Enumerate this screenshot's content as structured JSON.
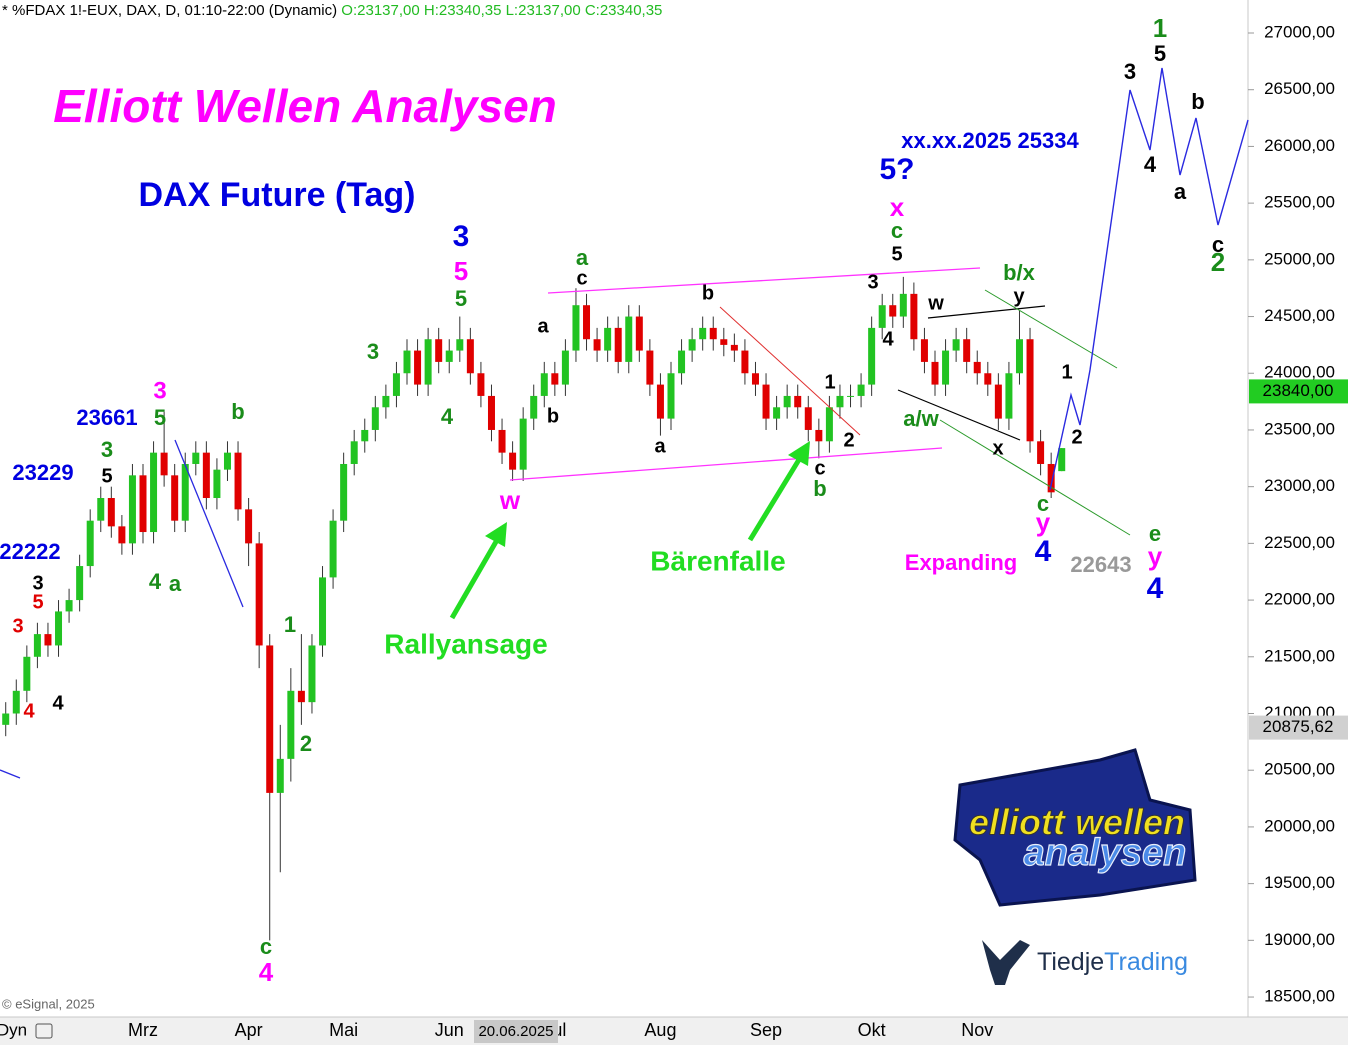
{
  "header": {
    "symbol": "* %FDAX 1!-EUX, DAX, D, 01:10-22:00 (Dynamic)",
    "ohlc": "O:23137,00 H:23340,35 L:23137,00 C:23340,35"
  },
  "title": "Elliott Wellen Analysen",
  "subtitle": "DAX Future (Tag)",
  "copyright": "© eSignal, 2025",
  "footer_mode": "Dyn",
  "cursor_date": "20.06.2025",
  "logo": {
    "line1": "elliott wellen",
    "line2": "analysen",
    "brand1": "Tiedje",
    "brand2": "Trading"
  },
  "chart_data": {
    "type": "candlestick",
    "up_color": "#22c322",
    "down_color": "#e00000",
    "ylim": [
      18324,
      27291
    ],
    "yticks": [
      {
        "value": 18500,
        "label": "18500,00"
      },
      {
        "value": 19000,
        "label": "19000,00"
      },
      {
        "value": 19500,
        "label": "19500,00"
      },
      {
        "value": 20000,
        "label": "20000,00"
      },
      {
        "value": 20500,
        "label": "20500,00"
      },
      {
        "value": 21000,
        "label": "21000,00"
      },
      {
        "value": 21500,
        "label": "21500,00"
      },
      {
        "value": 22000,
        "label": "22000,00"
      },
      {
        "value": 22500,
        "label": "22500,00"
      },
      {
        "value": 23000,
        "label": "23000,00"
      },
      {
        "value": 23500,
        "label": "23500,00"
      },
      {
        "value": 24000,
        "label": "24000,00"
      },
      {
        "value": 24500,
        "label": "24500,00"
      },
      {
        "value": 25000,
        "label": "25000,00"
      },
      {
        "value": 25500,
        "label": "25500,00"
      },
      {
        "value": 26000,
        "label": "26000,00"
      },
      {
        "value": 26500,
        "label": "26500,00"
      },
      {
        "value": 27000,
        "label": "27000,00"
      }
    ],
    "price_markers": [
      {
        "value": 23840,
        "label": "23840,00",
        "color": "#22cc22"
      },
      {
        "value": 20875.62,
        "label": "20875,62",
        "color": "#d0d0d0"
      }
    ],
    "categories": [
      null,
      null,
      null,
      null,
      null,
      null,
      null,
      null,
      null,
      null,
      null,
      null,
      null,
      "Mrz",
      null,
      null,
      null,
      null,
      null,
      null,
      null,
      null,
      null,
      "Apr",
      null,
      null,
      null,
      null,
      null,
      null,
      null,
      null,
      "Mai",
      null,
      null,
      null,
      null,
      null,
      null,
      null,
      null,
      null,
      "Jun",
      null,
      null,
      null,
      null,
      null,
      null,
      null,
      null,
      null,
      "Jul",
      null,
      null,
      null,
      null,
      null,
      null,
      null,
      null,
      null,
      "Aug",
      null,
      null,
      null,
      null,
      null,
      null,
      null,
      null,
      null,
      "Sep",
      null,
      null,
      null,
      null,
      null,
      null,
      null,
      null,
      null,
      "Okt",
      null,
      null,
      null,
      null,
      null,
      null,
      null,
      null,
      null,
      "Nov",
      null,
      null,
      null,
      null,
      null,
      null,
      null,
      null
    ],
    "open": [
      20900,
      21000,
      21200,
      21500,
      21700,
      21600,
      21900,
      22000,
      22300,
      22700,
      22900,
      22650,
      22500,
      23100,
      22600,
      23300,
      23100,
      22700,
      23200,
      23300,
      22900,
      23150,
      23300,
      22800,
      22500,
      21600,
      20300,
      20600,
      21200,
      21100,
      21600,
      22200,
      22700,
      23200,
      23400,
      23500,
      23700,
      23800,
      24000,
      24200,
      23900,
      24300,
      24100,
      24200,
      24300,
      24000,
      23800,
      23500,
      23300,
      23150,
      23600,
      23800,
      24000,
      23900,
      24200,
      24600,
      24300,
      24200,
      24400,
      24100,
      24500,
      24200,
      23900,
      23600,
      24000,
      24200,
      24300,
      24400,
      24300,
      24250,
      24200,
      24000,
      23900,
      23600,
      23700,
      23800,
      23700,
      23500,
      23400,
      23700,
      23800,
      23800,
      23900,
      24400,
      24600,
      24500,
      24700,
      24300,
      24100,
      23900,
      24200,
      24300,
      24100,
      24000,
      23900,
      23600,
      24000,
      24300,
      23400,
      23200,
      23137
    ],
    "high": [
      21100,
      21300,
      21600,
      21800,
      21800,
      22000,
      22100,
      22400,
      22800,
      23000,
      23000,
      22750,
      23200,
      23200,
      23400,
      23661,
      23200,
      23300,
      23400,
      23400,
      23250,
      23400,
      23400,
      22900,
      22600,
      21700,
      20900,
      21400,
      21700,
      21700,
      22300,
      22800,
      23300,
      23500,
      23600,
      23800,
      23900,
      24100,
      24300,
      24300,
      24400,
      24400,
      24300,
      24500,
      24400,
      24100,
      23900,
      23600,
      23400,
      23700,
      23900,
      24100,
      24100,
      24300,
      24750,
      24700,
      24400,
      24500,
      24500,
      24600,
      24600,
      24300,
      24000,
      24100,
      24300,
      24400,
      24500,
      24500,
      24400,
      24350,
      24300,
      24100,
      24000,
      23800,
      23900,
      23900,
      23800,
      23600,
      23800,
      23900,
      23900,
      24000,
      24500,
      24700,
      24700,
      24850,
      24800,
      24400,
      24200,
      24300,
      24400,
      24400,
      24200,
      24100,
      24000,
      24100,
      24550,
      24400,
      23500,
      23300,
      23340
    ],
    "low": [
      20800,
      20900,
      21100,
      21400,
      21500,
      21500,
      21800,
      21900,
      22200,
      22600,
      22550,
      22400,
      22400,
      22500,
      22500,
      23000,
      22600,
      22600,
      23100,
      22800,
      22800,
      23050,
      22700,
      22300,
      21400,
      19000,
      19600,
      20400,
      20900,
      21000,
      21500,
      22100,
      22600,
      23100,
      23300,
      23400,
      23600,
      23700,
      23900,
      23800,
      23800,
      24000,
      24000,
      24100,
      23900,
      23700,
      23400,
      23200,
      23050,
      23050,
      23500,
      23700,
      23800,
      23800,
      24100,
      24200,
      24100,
      24100,
      24000,
      24000,
      24100,
      23800,
      23450,
      23500,
      23900,
      24100,
      24200,
      24200,
      24150,
      24100,
      23900,
      23800,
      23500,
      23500,
      23600,
      23600,
      23400,
      23250,
      23300,
      23600,
      23700,
      23700,
      23800,
      24300,
      24400,
      24400,
      24200,
      24000,
      23800,
      23800,
      24100,
      24000,
      23900,
      23800,
      23500,
      23500,
      23900,
      23300,
      23100,
      22900,
      23137
    ],
    "close": [
      21000,
      21200,
      21500,
      21700,
      21600,
      21900,
      22000,
      22300,
      22700,
      22900,
      22650,
      22500,
      23100,
      22600,
      23300,
      23100,
      22700,
      23200,
      23300,
      22900,
      23150,
      23300,
      22800,
      22500,
      21600,
      20300,
      20600,
      21200,
      21100,
      21600,
      22200,
      22700,
      23200,
      23400,
      23500,
      23700,
      23800,
      24000,
      24200,
      23900,
      24300,
      24100,
      24200,
      24300,
      24000,
      23800,
      23500,
      23300,
      23150,
      23600,
      23800,
      24000,
      23900,
      24200,
      24600,
      24300,
      24200,
      24400,
      24100,
      24500,
      24200,
      23900,
      23600,
      24000,
      24200,
      24300,
      24400,
      24300,
      24250,
      24200,
      24000,
      23900,
      23600,
      23700,
      23800,
      23700,
      23500,
      23400,
      23700,
      23800,
      23800,
      23900,
      24400,
      24600,
      24500,
      24700,
      24300,
      24100,
      23900,
      24200,
      24300,
      24100,
      24000,
      23900,
      23600,
      24000,
      24300,
      23400,
      23200,
      22950,
      23340
    ],
    "annotations": [
      {
        "text": "3",
        "color": "#e00000"
      },
      {
        "text": "5",
        "color": "#e00000"
      },
      {
        "text": "3",
        "color": "#000000"
      },
      {
        "text": "4",
        "color": "#e00000"
      },
      {
        "text": "4",
        "color": "#000000"
      },
      {
        "text": "22222",
        "color": "#0000e0"
      },
      {
        "text": "23229",
        "color": "#0000e0"
      },
      {
        "text": "23661",
        "color": "#0000e0"
      },
      {
        "text": "3",
        "color": "#1a8c1a"
      },
      {
        "text": "5",
        "color": "#000000"
      },
      {
        "text": "3",
        "color": "#ff00ff"
      },
      {
        "text": "5",
        "color": "#1a8c1a"
      },
      {
        "text": "b",
        "color": "#1a8c1a"
      },
      {
        "text": "4",
        "color": "#1a8c1a"
      },
      {
        "text": "a",
        "color": "#1a8c1a"
      },
      {
        "text": "1",
        "color": "#1a8c1a"
      },
      {
        "text": "2",
        "color": "#1a8c1a"
      },
      {
        "text": "c",
        "color": "#1a8c1a"
      },
      {
        "text": "4",
        "color": "#ff00ff"
      },
      {
        "text": "3",
        "color": "#1a8c1a"
      },
      {
        "text": "4",
        "color": "#1a8c1a"
      },
      {
        "text": "3",
        "color": "#0000e0"
      },
      {
        "text": "5",
        "color": "#ff00ff"
      },
      {
        "text": "5",
        "color": "#1a8c1a"
      },
      {
        "text": "w",
        "color": "#ff00ff"
      },
      {
        "text": "a",
        "color": "#000000"
      },
      {
        "text": "b",
        "color": "#000000"
      },
      {
        "text": "a",
        "color": "#1a8c1a"
      },
      {
        "text": "c",
        "color": "#000000"
      },
      {
        "text": "a",
        "color": "#000000"
      },
      {
        "text": "b",
        "color": "#000000"
      },
      {
        "text": "1",
        "color": "#000000"
      },
      {
        "text": "2",
        "color": "#000000"
      },
      {
        "text": "c",
        "color": "#000000"
      },
      {
        "text": "b",
        "color": "#1a8c1a"
      },
      {
        "text": "xx.xx.2025 25334",
        "color": "#0000e0"
      },
      {
        "text": "5?",
        "color": "#0000e0"
      },
      {
        "text": "x",
        "color": "#ff00ff"
      },
      {
        "text": "c",
        "color": "#1a8c1a"
      },
      {
        "text": "5",
        "color": "#000000"
      },
      {
        "text": "3",
        "color": "#000000"
      },
      {
        "text": "4",
        "color": "#000000"
      },
      {
        "text": "w",
        "color": "#000000"
      },
      {
        "text": "b/x",
        "color": "#1a8c1a"
      },
      {
        "text": "y",
        "color": "#000000"
      },
      {
        "text": "a/w",
        "color": "#1a8c1a"
      },
      {
        "text": "x",
        "color": "#000000"
      },
      {
        "text": "c",
        "color": "#1a8c1a"
      },
      {
        "text": "y",
        "color": "#ff00ff"
      },
      {
        "text": "4",
        "color": "#0000e0"
      },
      {
        "text": "Expanding",
        "color": "#ff00ff"
      },
      {
        "text": "22643",
        "color": "#999999"
      },
      {
        "text": "e",
        "color": "#1a8c1a"
      },
      {
        "text": "y",
        "color": "#ff00ff"
      },
      {
        "text": "4",
        "color": "#0000e0"
      },
      {
        "text": "1",
        "color": "#000000"
      },
      {
        "text": "2",
        "color": "#000000"
      },
      {
        "text": "1",
        "color": "#1a8c1a"
      },
      {
        "text": "5",
        "color": "#000000"
      },
      {
        "text": "3",
        "color": "#000000"
      },
      {
        "text": "4",
        "color": "#000000"
      },
      {
        "text": "a",
        "color": "#000000"
      },
      {
        "text": "b",
        "color": "#000000"
      },
      {
        "text": "c",
        "color": "#000000"
      },
      {
        "text": "2",
        "color": "#1a8c1a"
      },
      {
        "text": "Rallyansage",
        "color": "#22dd22"
      },
      {
        "text": "Bärenfalle",
        "color": "#22dd22"
      }
    ]
  }
}
